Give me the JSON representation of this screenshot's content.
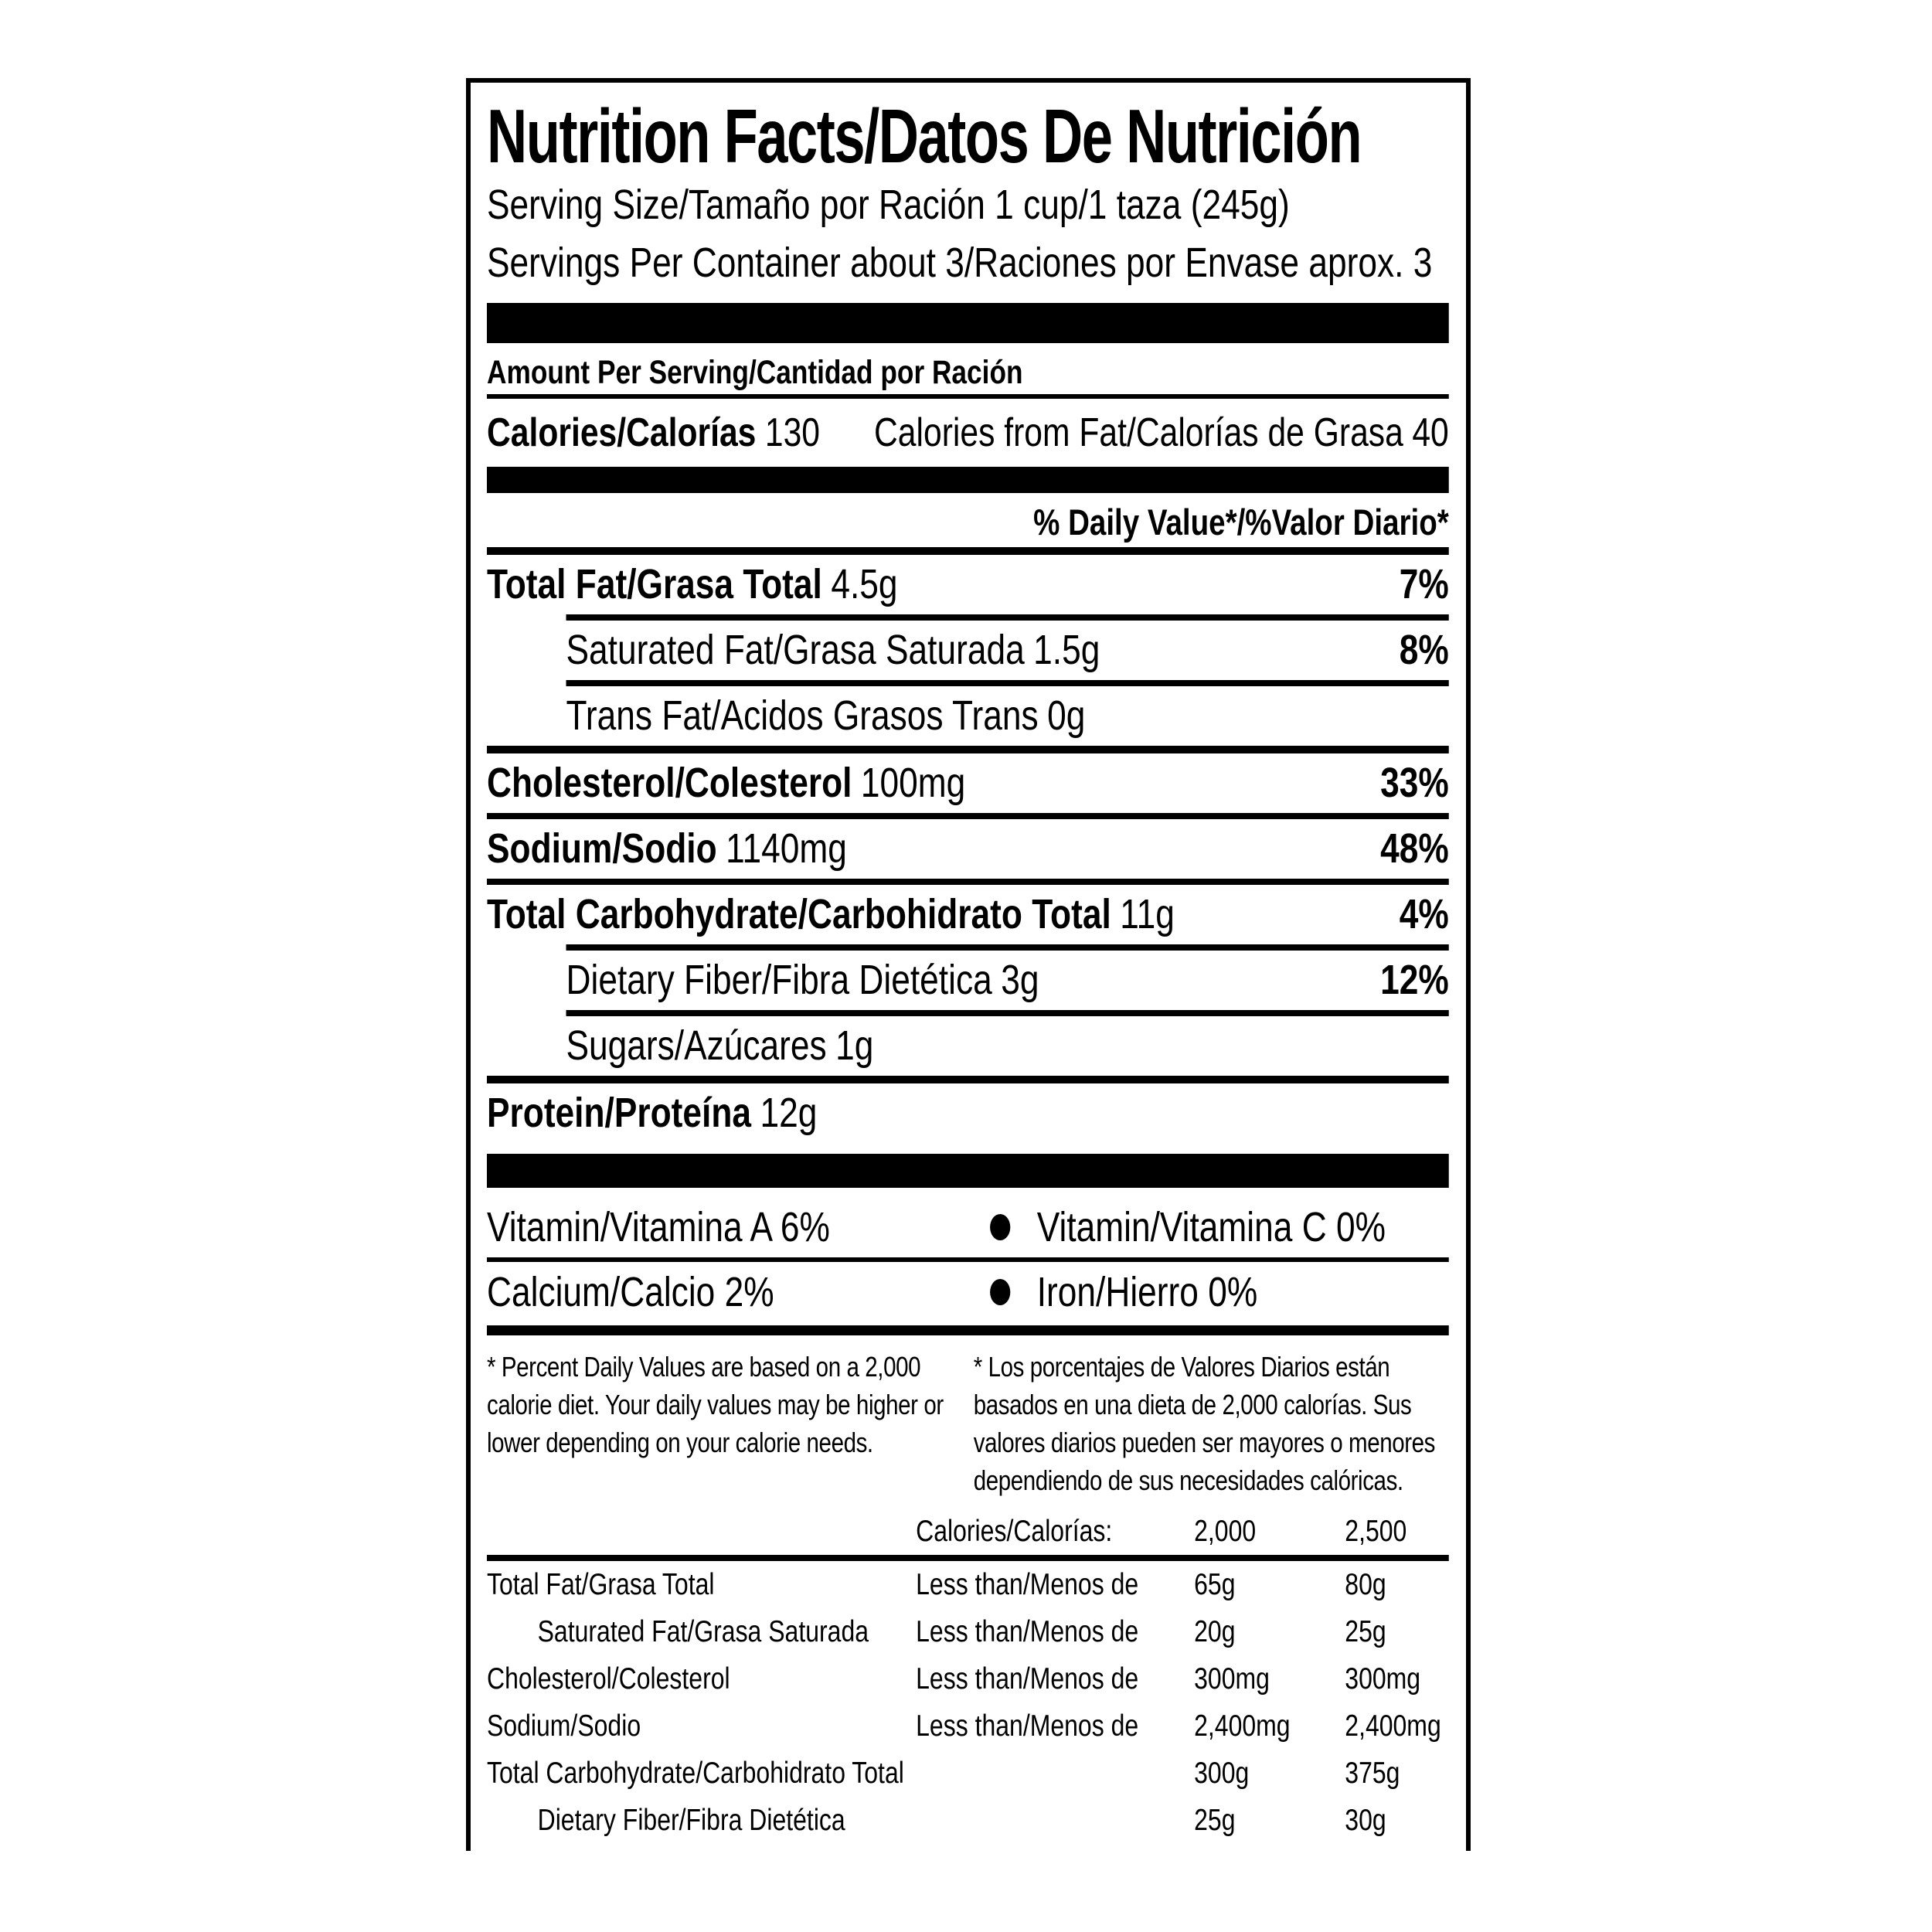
{
  "label": {
    "title": "Nutrition Facts/Datos De Nutrición",
    "serving_size": "Serving Size/Tamaño por Ración 1 cup/1 taza (245g)",
    "servings_per_container": "Servings Per Container about 3/Raciones por Envase aprox. 3",
    "amount_per_serving": "Amount Per Serving/Cantidad por Ración",
    "calories": {
      "label": "Calories/Calorías",
      "value": "130",
      "from_fat_label": "Calories from Fat/Calorías de Grasa",
      "from_fat_value": "40"
    },
    "daily_value_header": "% Daily Value*/%Valor Diario*",
    "nutrients": [
      {
        "label": "Total Fat/Grasa Total",
        "amount": "4.5g",
        "dv": "7%"
      },
      {
        "label": "Saturated Fat/Grasa Saturada",
        "amount": "1.5g",
        "dv": "8%"
      },
      {
        "label": "Trans Fat/Acidos Grasos Trans",
        "amount": "0g",
        "dv": ""
      },
      {
        "label": "Cholesterol/Colesterol",
        "amount": "100mg",
        "dv": "33%"
      },
      {
        "label": "Sodium/Sodio",
        "amount": "1140mg",
        "dv": "48%"
      },
      {
        "label": "Total Carbohydrate/Carbohidrato Total",
        "amount": "11g",
        "dv": "4%"
      },
      {
        "label": "Dietary Fiber/Fibra Dietética",
        "amount": "3g",
        "dv": "12%"
      },
      {
        "label": "Sugars/Azúcares",
        "amount": "1g",
        "dv": ""
      },
      {
        "label": "Protein/Proteína",
        "amount": "12g",
        "dv": ""
      }
    ],
    "vitamins": [
      {
        "left": "Vitamin/Vitamina A 6%",
        "right": "Vitamin/Vitamina C 0%"
      },
      {
        "left": "Calcium/Calcio 2%",
        "right": "Iron/Hierro 0%"
      }
    ],
    "footnote_en": "* Percent Daily Values are based on a 2,000 calorie diet. Your daily values may be higher or lower depending on your calorie needs.",
    "footnote_es": "* Los porcentajes de Valores Diarios están basados en una dieta de 2,000 calorías. Sus valores diarios pueden ser mayores o menores dependiendo de sus necesidades calóricas.",
    "dv_table": {
      "header": {
        "label": "Calories/Calorías:",
        "col1": "2,000",
        "col2": "2,500"
      },
      "qualifier": "Less than/Menos de",
      "rows": [
        {
          "label": "Total Fat/Grasa Total",
          "qualifier": "Less than/Menos de",
          "v1": "65g",
          "v2": "80g"
        },
        {
          "label": "Saturated Fat/Grasa Saturada",
          "qualifier": "Less than/Menos de",
          "v1": "20g",
          "v2": "25g"
        },
        {
          "label": "Cholesterol/Colesterol",
          "qualifier": "Less than/Menos de",
          "v1": "300mg",
          "v2": "300mg"
        },
        {
          "label": "Sodium/Sodio",
          "qualifier": "Less than/Menos de",
          "v1": "2,400mg",
          "v2": "2,400mg"
        },
        {
          "label": "Total Carbohydrate/Carbohidrato Total",
          "qualifier": "",
          "v1": "300g",
          "v2": "375g"
        },
        {
          "label": "Dietary Fiber/Fibra Dietética",
          "qualifier": "",
          "v1": "25g",
          "v2": "30g"
        }
      ]
    }
  }
}
